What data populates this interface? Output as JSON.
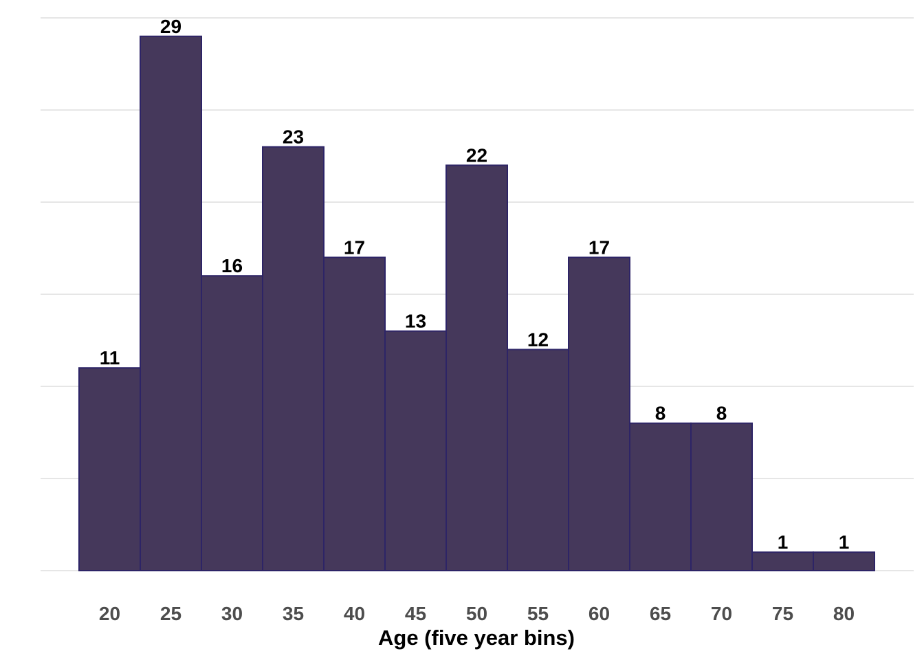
{
  "chart_data": {
    "type": "bar",
    "title": "",
    "xlabel": "Age (five year bins)",
    "ylabel": "",
    "categories": [
      "20",
      "25",
      "30",
      "35",
      "40",
      "45",
      "50",
      "55",
      "60",
      "65",
      "70",
      "75",
      "80"
    ],
    "values": [
      11,
      29,
      16,
      23,
      17,
      13,
      22,
      12,
      17,
      8,
      8,
      1,
      1
    ],
    "ylim": [
      0,
      30
    ],
    "y_gridlines": [
      0,
      5,
      10,
      15,
      20,
      25,
      30
    ],
    "grid": true,
    "legend": "none",
    "show_value_labels": true,
    "colors": {
      "bar_fill": "#3f3256",
      "bar_stroke": "#2d2466"
    }
  }
}
